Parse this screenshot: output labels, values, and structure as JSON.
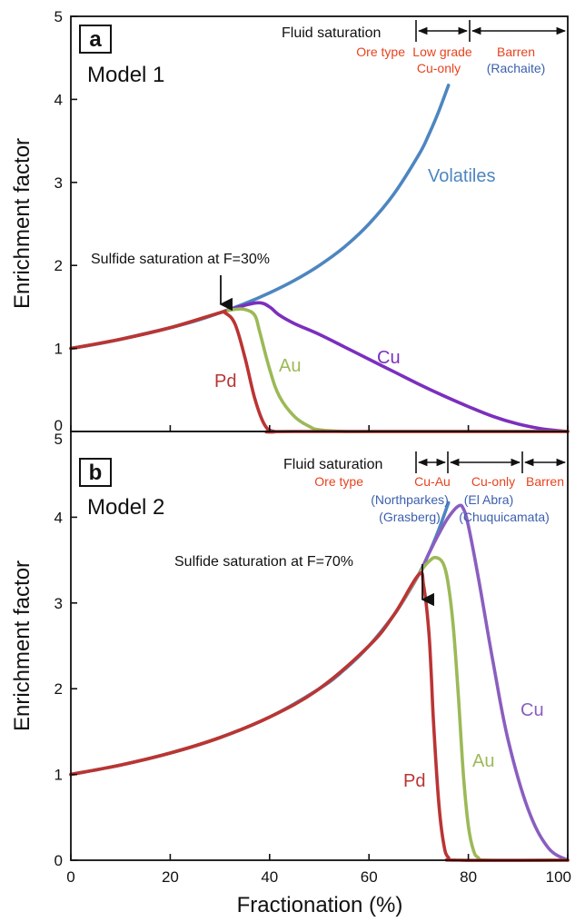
{
  "colors": {
    "Volatiles": "#4d86c0",
    "Cu": "#7b2fbe",
    "Cu_b": "#8a5ec0",
    "Au": "#9cb957",
    "Pd": "#bb3434",
    "ore_type": "#e8431f",
    "locality": "#3b5fae",
    "axis": "#111111"
  },
  "figure": {
    "xlabel": "Fractionation (%)",
    "ylabel": "Enrichment factor"
  },
  "chart_data": [
    {
      "type": "line",
      "panel": "a",
      "title": "Model 1",
      "xlabel": "Fractionation (%)",
      "ylabel": "Enrichment factor",
      "xlim": [
        0,
        100
      ],
      "ylim": [
        0,
        5
      ],
      "xticks": [
        0,
        20,
        40,
        60,
        80,
        100
      ],
      "yticks": [
        0,
        1,
        2,
        3,
        4,
        5
      ],
      "annotation": "Sulfide saturation at F=30%",
      "fluid_saturation": {
        "title": "Fluid saturation",
        "boundaries": [
          70,
          80,
          100
        ],
        "ore_type_label": "Ore type",
        "zones": [
          {
            "ore": "Low grade\nCu-only",
            "example": ""
          },
          {
            "ore": "Barren",
            "example": "(Rachaite)"
          }
        ]
      },
      "series": [
        {
          "name": "Volatiles",
          "x": [
            0,
            5,
            10,
            15,
            20,
            25,
            30,
            35,
            40,
            45,
            50,
            55,
            60,
            65,
            70,
            72,
            74,
            76
          ],
          "y": [
            1.0,
            1.05,
            1.11,
            1.18,
            1.25,
            1.33,
            1.43,
            1.54,
            1.67,
            1.82,
            2.0,
            2.22,
            2.5,
            2.86,
            3.33,
            3.57,
            3.85,
            4.17
          ]
        },
        {
          "name": "Cu",
          "x": [
            0,
            10,
            20,
            30,
            35,
            38,
            40,
            42,
            45,
            50,
            55,
            60,
            65,
            70,
            75,
            80,
            85,
            90,
            95,
            100
          ],
          "y": [
            1.0,
            1.11,
            1.25,
            1.43,
            1.52,
            1.55,
            1.5,
            1.4,
            1.3,
            1.17,
            1.02,
            0.87,
            0.72,
            0.57,
            0.43,
            0.3,
            0.18,
            0.09,
            0.03,
            0.0
          ]
        },
        {
          "name": "Au",
          "x": [
            0,
            10,
            20,
            30,
            33,
            35,
            37,
            38,
            40,
            42,
            45,
            48,
            50,
            55,
            60,
            100
          ],
          "y": [
            1.0,
            1.11,
            1.25,
            1.43,
            1.47,
            1.47,
            1.4,
            1.2,
            0.75,
            0.42,
            0.18,
            0.06,
            0.02,
            0.0,
            0.0,
            0.0
          ]
        },
        {
          "name": "Pd",
          "x": [
            0,
            10,
            20,
            30,
            31,
            33,
            35,
            37,
            39,
            41,
            45,
            100
          ],
          "y": [
            1.0,
            1.11,
            1.25,
            1.43,
            1.43,
            1.3,
            0.9,
            0.4,
            0.08,
            0.0,
            0.0,
            0.0
          ]
        }
      ]
    },
    {
      "type": "line",
      "panel": "b",
      "title": "Model 2",
      "xlabel": "Fractionation (%)",
      "ylabel": "Enrichment factor",
      "xlim": [
        0,
        100
      ],
      "ylim": [
        0,
        5
      ],
      "xticks": [
        0,
        20,
        40,
        60,
        80,
        100
      ],
      "yticks": [
        0,
        1,
        2,
        3,
        4,
        5
      ],
      "annotation": "Sulfide saturation at F=70%",
      "fluid_saturation": {
        "title": "Fluid saturation",
        "boundaries": [
          70,
          76,
          91,
          100
        ],
        "ore_type_label": "Ore type",
        "zones": [
          {
            "ore": "Cu-Au",
            "example": "(Northparkes)\n(Grasberg)"
          },
          {
            "ore": "Cu-only",
            "example": "(El Abra)\n(Chuquicamata)"
          },
          {
            "ore": "Barren",
            "example": ""
          }
        ]
      },
      "series": [
        {
          "name": "Volatiles",
          "x": [
            0,
            10,
            20,
            30,
            40,
            50,
            55,
            60,
            65,
            68,
            70,
            72,
            74,
            76
          ],
          "y": [
            1.0,
            1.11,
            1.25,
            1.43,
            1.67,
            2.0,
            2.22,
            2.5,
            2.86,
            3.13,
            3.33,
            3.57,
            3.85,
            4.17
          ]
        },
        {
          "name": "Cu",
          "x": [
            0,
            10,
            20,
            30,
            40,
            50,
            60,
            65,
            70,
            72,
            74,
            76,
            78,
            79,
            80,
            82,
            85,
            88,
            92,
            96,
            100
          ],
          "y": [
            1.0,
            1.11,
            1.25,
            1.43,
            1.67,
            2.0,
            2.5,
            2.86,
            3.33,
            3.57,
            3.8,
            4.0,
            4.13,
            4.1,
            3.9,
            3.3,
            2.3,
            1.4,
            0.6,
            0.15,
            0.0
          ]
        },
        {
          "name": "Au",
          "x": [
            0,
            10,
            20,
            30,
            40,
            50,
            60,
            65,
            70,
            72,
            73.5,
            75,
            76,
            77,
            78,
            79,
            80,
            81,
            82,
            84,
            100
          ],
          "y": [
            1.0,
            1.11,
            1.25,
            1.43,
            1.67,
            2.0,
            2.5,
            2.86,
            3.33,
            3.48,
            3.53,
            3.45,
            3.2,
            2.7,
            1.9,
            1.0,
            0.4,
            0.12,
            0.03,
            0.0,
            0.0
          ]
        },
        {
          "name": "Pd",
          "x": [
            0,
            10,
            20,
            30,
            40,
            50,
            60,
            65,
            70,
            71,
            72,
            72.5,
            73,
            74,
            75,
            76,
            78,
            100
          ],
          "y": [
            1.0,
            1.11,
            1.25,
            1.43,
            1.67,
            2.0,
            2.5,
            2.86,
            3.33,
            3.2,
            2.7,
            2.2,
            1.6,
            0.7,
            0.2,
            0.03,
            0.0,
            0.0
          ]
        }
      ]
    }
  ],
  "labels": {
    "a": {
      "letter": "a",
      "model": "Model 1",
      "fluid_saturation": "Fluid saturation",
      "ore_type": "Ore type",
      "zone1_line1": "Low grade",
      "zone1_line2": "Cu-only",
      "zone2_line1": "Barren",
      "zone2_line2": "(Rachaite)",
      "annotation": "Sulfide saturation at F=30%",
      "volatiles": "Volatiles",
      "cu": "Cu",
      "au": "Au",
      "pd": "Pd"
    },
    "b": {
      "letter": "b",
      "model": "Model 2",
      "fluid_saturation": "Fluid saturation",
      "ore_type": "Ore type",
      "zone1": "Cu-Au",
      "zone2": "Cu-only",
      "zone3": "Barren",
      "loc1_line1": "(Northparkes)",
      "loc1_line2": "(Grasberg)",
      "loc2_line1": "(El Abra)",
      "loc2_line2": "(Chuquicamata)",
      "annotation": "Sulfide saturation at F=70%",
      "cu": "Cu",
      "au": "Au",
      "pd": "Pd"
    }
  }
}
